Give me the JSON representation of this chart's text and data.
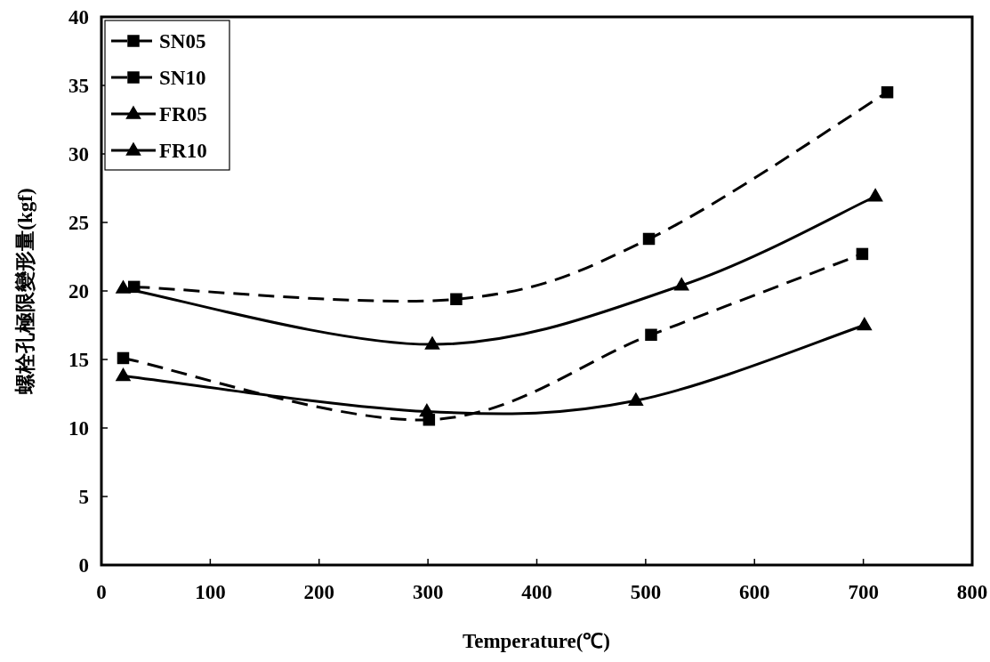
{
  "chart_data": {
    "type": "line",
    "xlabel": "Temperature(℃)",
    "ylabel": "螺栓孔極限變形量(kgf)",
    "xlim": [
      0,
      800
    ],
    "xticks": [
      0,
      100,
      200,
      300,
      400,
      500,
      600,
      700,
      800
    ],
    "ylim": [
      0,
      40
    ],
    "yticks": [
      0,
      5,
      10,
      15,
      20,
      25,
      30,
      35,
      40
    ],
    "legend": "top left",
    "grid": false,
    "series": [
      {
        "name": "SN05",
        "color": "#000000",
        "marker": "square",
        "line_style": "dashed",
        "x": [
          20,
          301,
          505,
          699
        ],
        "values": [
          15.1,
          10.6,
          16.8,
          22.7
        ]
      },
      {
        "name": "SN10",
        "color": "#000000",
        "marker": "square",
        "line_style": "dashed",
        "x": [
          30,
          326,
          503,
          722
        ],
        "values": [
          20.3,
          19.4,
          23.8,
          34.5
        ]
      },
      {
        "name": "FR05",
        "color": "#000000",
        "marker": "triangle",
        "line_style": "solid",
        "x": [
          20,
          299,
          491,
          701
        ],
        "values": [
          13.8,
          11.2,
          12.0,
          17.5
        ]
      },
      {
        "name": "FR10",
        "color": "#000000",
        "marker": "triangle",
        "line_style": "solid",
        "x": [
          20,
          304,
          533,
          711
        ],
        "values": [
          20.2,
          16.1,
          20.4,
          26.9
        ]
      }
    ]
  }
}
